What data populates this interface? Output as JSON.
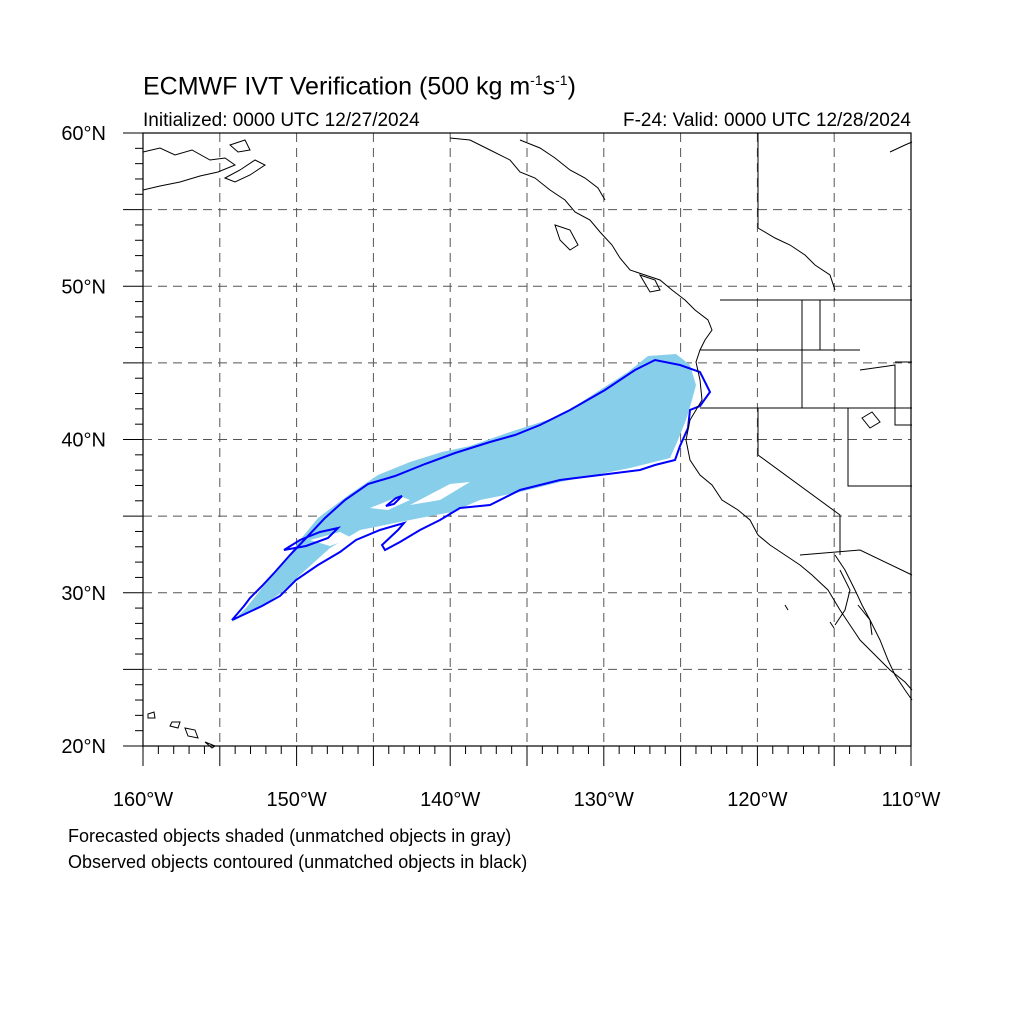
{
  "title": {
    "text": "ECMWF IVT Verification (500 kg m",
    "exp1": "-1",
    "mid": "s",
    "exp2": "-1",
    "end": ")"
  },
  "initialized": "Initialized: 0000 UTC 12/27/2024",
  "valid": "F-24: Valid: 0000 UTC 12/28/2024",
  "lat_labels": [
    "60°N",
    "50°N",
    "40°N",
    "30°N",
    "20°N"
  ],
  "lon_labels": [
    "160°W",
    "150°W",
    "140°W",
    "130°W",
    "120°W",
    "110°W"
  ],
  "footer": {
    "line1": "Forecasted objects shaded (unmatched objects in gray)",
    "line2": "Observed objects contoured (unmatched objects in black)"
  },
  "map": {
    "lat_range": [
      20,
      60
    ],
    "lon_range": [
      -160,
      -110
    ],
    "grid": "dashed 5°",
    "forecast_fill_color": "#87ceeb",
    "observed_contour_color": "#0000ff",
    "coastline_color": "#000000"
  }
}
